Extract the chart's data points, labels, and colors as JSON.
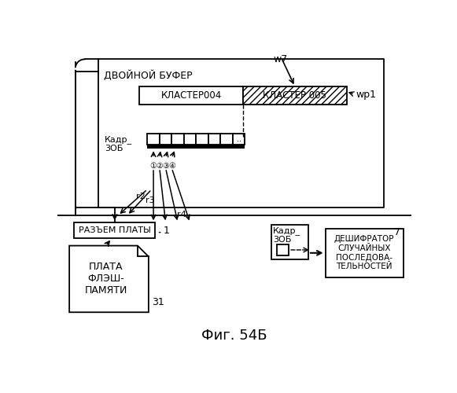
{
  "bg_color": "#ffffff",
  "title": "Фиг. 54Б",
  "double_buffer_label": "ДВОЙНОЙ БУФЕР",
  "cluster004_label": "КЛАСТЕР004",
  "cluster_hatch_label": "КЛАСТЕР 005",
  "frame_label1": "Кадр_\n3ОБ",
  "frame_label2": "Кадр_\n3ОБ",
  "razjem_label": "РАЗЪЕМ ПЛАТЫ",
  "plata_label": "ПЛАТА\nФЛЭШ-\nПАМЯТИ",
  "deshifrator_label": "ДЕШИФРАТОР\nСЛУЧАЙНЫХ\nПОСЛЕДОВА-\nТЕЛЬНОСТЕЙ",
  "w7_label": "w7",
  "wp1_label": "wp1",
  "r2_label": "r2",
  "r3_label": "r3",
  "r4_label": "r4",
  "label_1": "1",
  "label_31": "31",
  "label_7": "7"
}
